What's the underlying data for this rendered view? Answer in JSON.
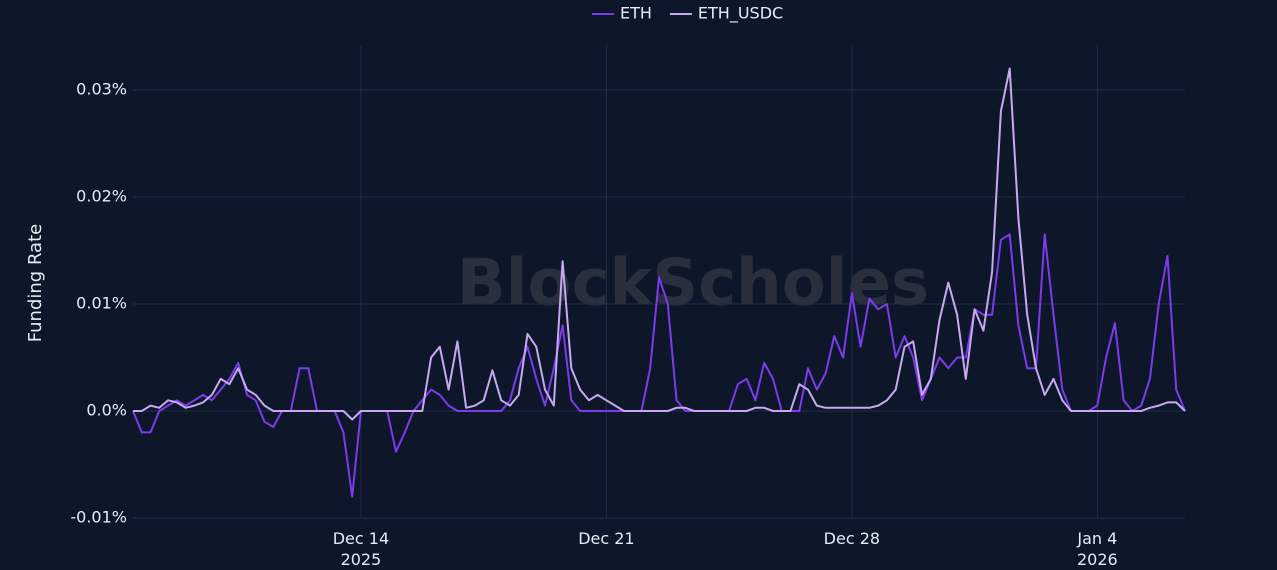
{
  "chart_data": {
    "type": "line",
    "y_label": "Funding Rate",
    "watermark": "BlockScholes",
    "grid": true,
    "legend": "top",
    "xlim": [
      "2025-12-07T12:00",
      "2026-01-06T12:00"
    ],
    "ylim": [
      -0.01,
      0.0342
    ],
    "yticks": [
      {
        "value": -0.01,
        "label": "-0.01%"
      },
      {
        "value": 0,
        "label": "0.0%"
      },
      {
        "value": 0.01,
        "label": "0.01%"
      },
      {
        "value": 0.02,
        "label": "0.02%"
      },
      {
        "value": 0.03,
        "label": "0.03%"
      }
    ],
    "xticks": [
      {
        "value": "2025-12-14T00:00",
        "label": "Dec 14\n2025"
      },
      {
        "value": "2025-12-21T00:00",
        "label": "Dec 21"
      },
      {
        "value": "2025-12-28T00:00",
        "label": "Dec 28"
      },
      {
        "value": "2026-01-04T00:00",
        "label": "Jan 4\n2026"
      }
    ],
    "x": [
      "2025-12-07T12:00",
      "2025-12-07T18:00",
      "2025-12-08T00:00",
      "2025-12-08T06:00",
      "2025-12-08T12:00",
      "2025-12-08T18:00",
      "2025-12-09T00:00",
      "2025-12-09T06:00",
      "2025-12-09T12:00",
      "2025-12-09T18:00",
      "2025-12-10T00:00",
      "2025-12-10T06:00",
      "2025-12-10T12:00",
      "2025-12-10T18:00",
      "2025-12-11T00:00",
      "2025-12-11T06:00",
      "2025-12-11T12:00",
      "2025-12-11T18:00",
      "2025-12-12T00:00",
      "2025-12-12T06:00",
      "2025-12-12T12:00",
      "2025-12-12T18:00",
      "2025-12-13T00:00",
      "2025-12-13T06:00",
      "2025-12-13T12:00",
      "2025-12-13T18:00",
      "2025-12-14T00:00",
      "2025-12-14T06:00",
      "2025-12-14T12:00",
      "2025-12-14T18:00",
      "2025-12-15T00:00",
      "2025-12-15T06:00",
      "2025-12-15T12:00",
      "2025-12-15T18:00",
      "2025-12-16T00:00",
      "2025-12-16T06:00",
      "2025-12-16T12:00",
      "2025-12-16T18:00",
      "2025-12-17T00:00",
      "2025-12-17T06:00",
      "2025-12-17T12:00",
      "2025-12-17T18:00",
      "2025-12-18T00:00",
      "2025-12-18T06:00",
      "2025-12-18T12:00",
      "2025-12-18T18:00",
      "2025-12-19T00:00",
      "2025-12-19T06:00",
      "2025-12-19T12:00",
      "2025-12-19T18:00",
      "2025-12-20T00:00",
      "2025-12-20T06:00",
      "2025-12-20T12:00",
      "2025-12-20T18:00",
      "2025-12-21T00:00",
      "2025-12-21T06:00",
      "2025-12-21T12:00",
      "2025-12-21T18:00",
      "2025-12-22T00:00",
      "2025-12-22T06:00",
      "2025-12-22T12:00",
      "2025-12-22T18:00",
      "2025-12-23T00:00",
      "2025-12-23T06:00",
      "2025-12-23T12:00",
      "2025-12-23T18:00",
      "2025-12-24T00:00",
      "2025-12-24T06:00",
      "2025-12-24T12:00",
      "2025-12-24T18:00",
      "2025-12-25T00:00",
      "2025-12-25T06:00",
      "2025-12-25T12:00",
      "2025-12-25T18:00",
      "2025-12-26T00:00",
      "2025-12-26T06:00",
      "2025-12-26T12:00",
      "2025-12-26T18:00",
      "2025-12-27T00:00",
      "2025-12-27T06:00",
      "2025-12-27T12:00",
      "2025-12-27T18:00",
      "2025-12-28T00:00",
      "2025-12-28T06:00",
      "2025-12-28T12:00",
      "2025-12-28T18:00",
      "2025-12-29T00:00",
      "2025-12-29T06:00",
      "2025-12-29T12:00",
      "2025-12-29T18:00",
      "2025-12-30T00:00",
      "2025-12-30T06:00",
      "2025-12-30T12:00",
      "2025-12-30T18:00",
      "2025-12-31T00:00",
      "2025-12-31T06:00",
      "2025-12-31T12:00",
      "2025-12-31T18:00",
      "2026-01-01T00:00",
      "2026-01-01T06:00",
      "2026-01-01T12:00",
      "2026-01-01T18:00",
      "2026-01-02T00:00",
      "2026-01-02T06:00",
      "2026-01-02T12:00",
      "2026-01-02T18:00",
      "2026-01-03T00:00",
      "2026-01-03T06:00",
      "2026-01-03T12:00",
      "2026-01-03T18:00",
      "2026-01-04T00:00",
      "2026-01-04T06:00",
      "2026-01-04T12:00",
      "2026-01-04T18:00",
      "2026-01-05T00:00",
      "2026-01-05T06:00",
      "2026-01-05T12:00",
      "2026-01-05T18:00",
      "2026-01-06T00:00",
      "2026-01-06T06:00",
      "2026-01-06T12:00"
    ],
    "series": [
      {
        "name": "ETH",
        "color": "#7c3aed",
        "values": [
          0,
          -0.002,
          -0.002,
          0,
          0.0005,
          0.001,
          0.0005,
          0.001,
          0.0015,
          0.001,
          0.002,
          0.003,
          0.0045,
          0.0015,
          0.001,
          -0.001,
          -0.0015,
          0,
          0,
          0.004,
          0.004,
          0,
          0,
          0,
          -0.002,
          -0.008,
          0,
          0,
          0,
          0,
          -0.0038,
          -0.002,
          0,
          0.001,
          0.002,
          0.0015,
          0.0005,
          0,
          0,
          0,
          0,
          0,
          0,
          0.001,
          0.004,
          0.006,
          0.003,
          0.0005,
          0.004,
          0.008,
          0.001,
          0,
          0,
          0,
          0,
          0,
          0,
          0,
          0,
          0.004,
          0.0125,
          0.01,
          0.001,
          0,
          0,
          0,
          0,
          0,
          0,
          0.0025,
          0.003,
          0.001,
          0.0045,
          0.003,
          0,
          0,
          0,
          0.004,
          0.002,
          0.0035,
          0.007,
          0.005,
          0.011,
          0.006,
          0.0105,
          0.0095,
          0.01,
          0.005,
          0.007,
          0.005,
          0.001,
          0.003,
          0.005,
          0.004,
          0.005,
          0.005,
          0.0095,
          0.009,
          0.009,
          0.016,
          0.0165,
          0.008,
          0.004,
          0.004,
          0.0165,
          0.009,
          0.002,
          0,
          0,
          0,
          0.0005,
          0.005,
          0.0082,
          0.001,
          0,
          0.0005,
          0.003,
          0.01,
          0.0145,
          0.002,
          0
        ]
      },
      {
        "name": "ETH_USDC",
        "color": "#c7a9f2",
        "values": [
          0,
          0,
          0.0005,
          0.0003,
          0.001,
          0.0008,
          0.0003,
          0.0005,
          0.0008,
          0.0015,
          0.003,
          0.0025,
          0.004,
          0.002,
          0.0015,
          0.0005,
          0,
          0,
          0,
          0,
          0,
          0,
          0,
          0,
          0,
          -0.0008,
          0,
          0,
          0,
          0,
          0,
          0,
          0,
          0,
          0.005,
          0.006,
          0.002,
          0.0065,
          0.0003,
          0.0005,
          0.001,
          0.0038,
          0.001,
          0.0005,
          0.0015,
          0.0072,
          0.006,
          0.002,
          0.0005,
          0.014,
          0.004,
          0.002,
          0.001,
          0.0015,
          0.001,
          0.0005,
          0,
          0,
          0,
          0,
          0,
          0,
          0.0003,
          0.0003,
          0,
          0,
          0,
          0,
          0,
          0,
          0,
          0.0003,
          0.0003,
          0,
          0,
          0,
          0.0025,
          0.002,
          0.0005,
          0.0003,
          0.0003,
          0.0003,
          0.0003,
          0.0003,
          0.0003,
          0.0005,
          0.001,
          0.002,
          0.006,
          0.0065,
          0.0015,
          0.003,
          0.0085,
          0.012,
          0.009,
          0.003,
          0.0095,
          0.0075,
          0.013,
          0.028,
          0.032,
          0.018,
          0.009,
          0.004,
          0.0015,
          0.003,
          0.001,
          0,
          0,
          0,
          0,
          0,
          0,
          0,
          0,
          0,
          0.0003,
          0.0005,
          0.0008,
          0.0008,
          0
        ]
      }
    ]
  }
}
